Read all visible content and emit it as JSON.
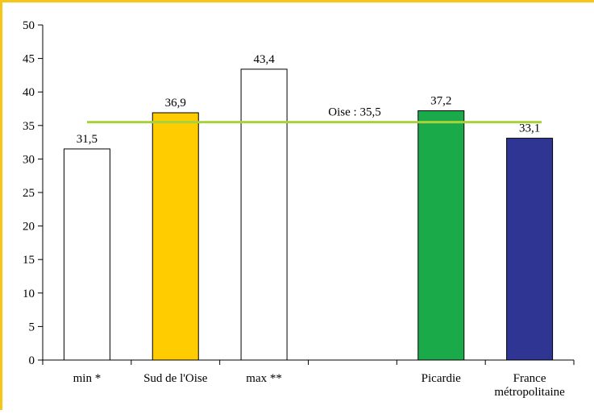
{
  "chart_data": {
    "type": "bar",
    "title": "",
    "xlabel": "",
    "ylabel": "",
    "ylim": [
      0,
      50
    ],
    "yticks": [
      0,
      5,
      10,
      15,
      20,
      25,
      30,
      35,
      40,
      45,
      50
    ],
    "grid": false,
    "legend": "none",
    "slots": [
      {
        "label": "min *",
        "value": 31.5,
        "value_label": "31,5",
        "color": "#ffffff"
      },
      {
        "label": "Sud de l'Oise",
        "value": 36.9,
        "value_label": "36,9",
        "color": "#ffcc00"
      },
      {
        "label": "max **",
        "value": 43.4,
        "value_label": "43,4",
        "color": "#ffffff"
      },
      {
        "label": "",
        "value": null,
        "value_label": "",
        "color": ""
      },
      {
        "label": "Picardie",
        "value": 37.2,
        "value_label": "37,2",
        "color": "#1aaa4a"
      },
      {
        "label": "France\nmétropolitaine",
        "value": 33.1,
        "value_label": "33,1",
        "color": "#2e3592"
      }
    ],
    "reference_line": {
      "label": "Oise : 35,5",
      "value": 35.5,
      "color": "#a8d23c"
    },
    "frame_color": "#f5c518"
  }
}
